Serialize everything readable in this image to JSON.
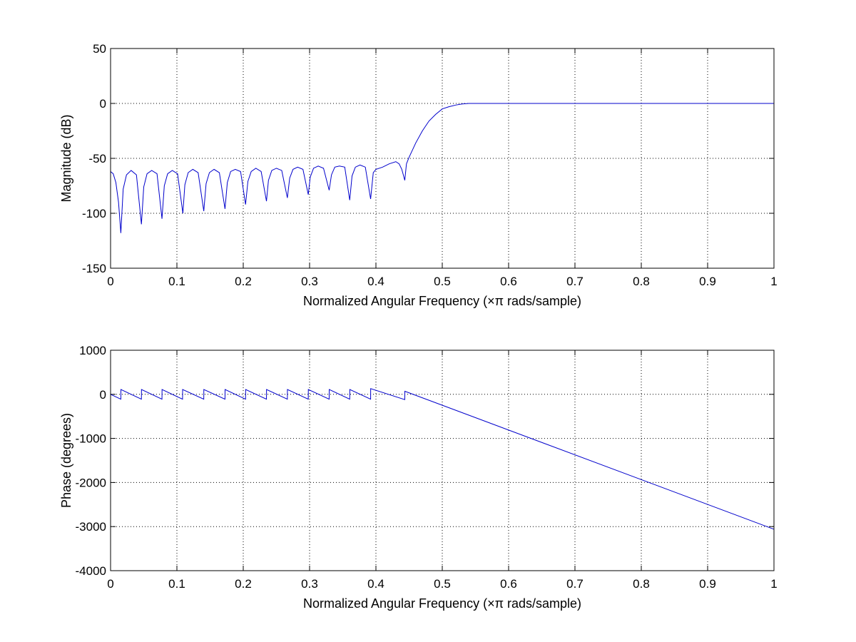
{
  "chart_data": [
    {
      "type": "line",
      "title": "",
      "xlabel": "Normalized Angular Frequency  (×π rads/sample)",
      "ylabel": "Magnitude (dB)",
      "xlim": [
        0,
        1
      ],
      "ylim": [
        -150,
        50
      ],
      "xticks": [
        0,
        0.1,
        0.2,
        0.3,
        0.4,
        0.5,
        0.6,
        0.7,
        0.8,
        0.9,
        1
      ],
      "xtick_labels": [
        "0",
        "0.1",
        "0.2",
        "0.3",
        "0.4",
        "0.5",
        "0.6",
        "0.7",
        "0.8",
        "0.9",
        "1"
      ],
      "yticks": [
        -150,
        -100,
        -50,
        0,
        50
      ],
      "ytick_labels": [
        "-150",
        "-100",
        "-50",
        "0",
        "50"
      ],
      "grid": true,
      "line_color": "#0000cc",
      "series": [
        {
          "x": [
            0,
            0.004,
            0.008,
            0.012,
            0.0155,
            0.019,
            0.024,
            0.031,
            0.039,
            0.0465,
            0.05,
            0.055,
            0.062,
            0.07,
            0.0775,
            0.081,
            0.086,
            0.093,
            0.101,
            0.109,
            0.112,
            0.117,
            0.124,
            0.132,
            0.1405,
            0.144,
            0.149,
            0.156,
            0.164,
            0.1725,
            0.176,
            0.181,
            0.188,
            0.196,
            0.2035,
            0.207,
            0.212,
            0.219,
            0.227,
            0.235,
            0.238,
            0.243,
            0.25,
            0.258,
            0.2665,
            0.27,
            0.275,
            0.282,
            0.29,
            0.298,
            0.301,
            0.306,
            0.313,
            0.321,
            0.3295,
            0.333,
            0.338,
            0.345,
            0.353,
            0.3605,
            0.364,
            0.369,
            0.376,
            0.384,
            0.392,
            0.396,
            0.4,
            0.41,
            0.42,
            0.43,
            0.435,
            0.439,
            0.4435,
            0.446,
            0.45,
            0.46,
            0.47,
            0.48,
            0.49,
            0.5,
            0.51,
            0.52,
            0.53,
            0.54,
            0.55,
            0.6,
            0.7,
            0.8,
            0.9,
            1.0
          ],
          "y": [
            -62,
            -64,
            -72,
            -90,
            -118,
            -78,
            -65,
            -61,
            -65,
            -110,
            -76,
            -64,
            -61,
            -64,
            -105,
            -75,
            -64,
            -61,
            -64,
            -100,
            -74,
            -63,
            -60,
            -63,
            -98,
            -73,
            -63,
            -60,
            -63,
            -96,
            -72,
            -62,
            -60,
            -62,
            -92,
            -71,
            -62,
            -59,
            -62,
            -89,
            -70,
            -61,
            -59,
            -61,
            -86,
            -68,
            -60,
            -58,
            -60,
            -83,
            -67,
            -59,
            -57,
            -59,
            -79,
            -65,
            -58,
            -57,
            -58,
            -88,
            -66,
            -58,
            -56,
            -58,
            -87,
            -63,
            -60,
            -58,
            -55,
            -53,
            -55,
            -60,
            -70,
            -55,
            -49,
            -36,
            -25,
            -16,
            -10,
            -5,
            -3,
            -1.5,
            -0.5,
            0,
            0,
            0,
            0,
            0,
            0,
            0
          ]
        }
      ]
    },
    {
      "type": "line",
      "title": "",
      "xlabel": "Normalized Angular Frequency  (×π rads/sample)",
      "ylabel": "Phase (degrees)",
      "xlim": [
        0,
        1
      ],
      "ylim": [
        -4000,
        1000
      ],
      "xticks": [
        0,
        0.1,
        0.2,
        0.3,
        0.4,
        0.5,
        0.6,
        0.7,
        0.8,
        0.9,
        1
      ],
      "xtick_labels": [
        "0",
        "0.1",
        "0.2",
        "0.3",
        "0.4",
        "0.5",
        "0.6",
        "0.7",
        "0.8",
        "0.9",
        "1"
      ],
      "yticks": [
        -4000,
        -3000,
        -2000,
        -1000,
        0,
        1000
      ],
      "ytick_labels": [
        "-4000",
        "-3000",
        "-2000",
        "-1000",
        "0",
        "1000"
      ],
      "grid": true,
      "line_color": "#0000cc",
      "series": [
        {
          "x": [
            0,
            0.0155,
            0.0156,
            0.0465,
            0.0466,
            0.0775,
            0.0776,
            0.1085,
            0.1086,
            0.1405,
            0.1406,
            0.1725,
            0.1726,
            0.2035,
            0.2036,
            0.235,
            0.2351,
            0.2665,
            0.2666,
            0.298,
            0.2981,
            0.3295,
            0.3296,
            0.3605,
            0.3606,
            0.392,
            0.3921,
            0.4435,
            0.4436,
            1.0
          ],
          "y": [
            0,
            -110,
            110,
            -110,
            110,
            -110,
            110,
            -110,
            110,
            -110,
            110,
            -110,
            110,
            -110,
            110,
            -110,
            110,
            -110,
            110,
            -110,
            110,
            -110,
            110,
            -110,
            110,
            -110,
            130,
            -120,
            70,
            -3060
          ]
        }
      ]
    }
  ]
}
